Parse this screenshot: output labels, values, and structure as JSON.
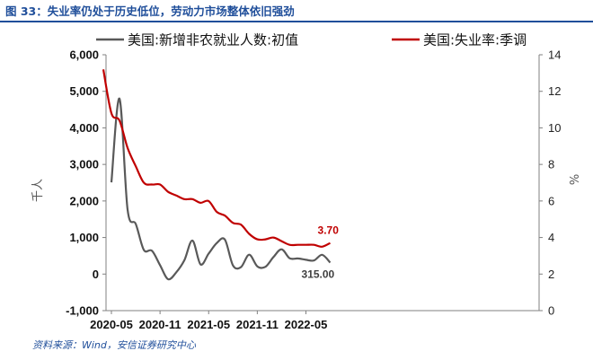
{
  "header": {
    "title": "图 33：失业率仍处于历史低位，劳动力市场整体依旧强劲"
  },
  "footer": {
    "source": "资料来源：Wind，安信证券研究中心"
  },
  "colors": {
    "claims": "#595959",
    "unemployment": "#c00000",
    "title": "#1f4e9a"
  },
  "chart_data": {
    "type": "line",
    "x_ticks": [
      "2020-05",
      "2020-11",
      "2021-05",
      "2021-11",
      "2022-05"
    ],
    "left_axis": {
      "label": "千人",
      "ylim": [
        -1000,
        6000
      ],
      "ticks": [
        "-1,000",
        "0",
        "1,000",
        "2,000",
        "3,000",
        "4,000",
        "5,000",
        "6,000"
      ],
      "tick_values": [
        -1000,
        0,
        1000,
        2000,
        3000,
        4000,
        5000,
        6000
      ]
    },
    "right_axis": {
      "label": "%",
      "ylim": [
        0,
        14
      ],
      "ticks": [
        "0",
        "2",
        "4",
        "6",
        "8",
        "10",
        "12",
        "14"
      ],
      "tick_values": [
        0,
        2,
        4,
        6,
        8,
        10,
        12,
        14
      ]
    },
    "series": [
      {
        "name": "美国:新增非农就业人数:初值",
        "axis": "left",
        "color": "#595959",
        "x": [
          "2020-05",
          "2020-06",
          "2020-07",
          "2020-08",
          "2020-09",
          "2020-10",
          "2020-11",
          "2020-12",
          "2021-01",
          "2021-02",
          "2021-03",
          "2021-04",
          "2021-05",
          "2021-06",
          "2021-07",
          "2021-08",
          "2021-09",
          "2021-10",
          "2021-11",
          "2021-12",
          "2022-01",
          "2022-02",
          "2022-03",
          "2022-04",
          "2022-05",
          "2022-06",
          "2022-07",
          "2022-08"
        ],
        "values": [
          2509,
          4800,
          1763,
          1371,
          661,
          638,
          245,
          -140,
          49,
          379,
          916,
          266,
          559,
          850,
          943,
          235,
          194,
          531,
          210,
          199,
          467,
          678,
          431,
          428,
          390,
          372,
          528,
          315
        ],
        "end_label": "315.00"
      },
      {
        "name": "美国:失业率:季调",
        "axis": "right",
        "color": "#c00000",
        "x": [
          "2020-04",
          "2020-05",
          "2020-06",
          "2020-07",
          "2020-08",
          "2020-09",
          "2020-10",
          "2020-11",
          "2020-12",
          "2021-01",
          "2021-02",
          "2021-03",
          "2021-04",
          "2021-05",
          "2021-06",
          "2021-07",
          "2021-08",
          "2021-09",
          "2021-10",
          "2021-11",
          "2021-12",
          "2022-01",
          "2022-02",
          "2022-03",
          "2022-04",
          "2022-05",
          "2022-06",
          "2022-07",
          "2022-08"
        ],
        "values": [
          13.2,
          10.8,
          10.4,
          8.9,
          7.9,
          7.0,
          6.9,
          6.9,
          6.5,
          6.3,
          6.1,
          6.1,
          5.9,
          6.0,
          5.4,
          5.2,
          4.8,
          4.7,
          4.2,
          3.9,
          3.9,
          4.0,
          3.8,
          3.6,
          3.6,
          3.6,
          3.6,
          3.5,
          3.7
        ],
        "end_label": "3.70"
      }
    ],
    "legend": {
      "position": "top"
    },
    "grid": false
  }
}
